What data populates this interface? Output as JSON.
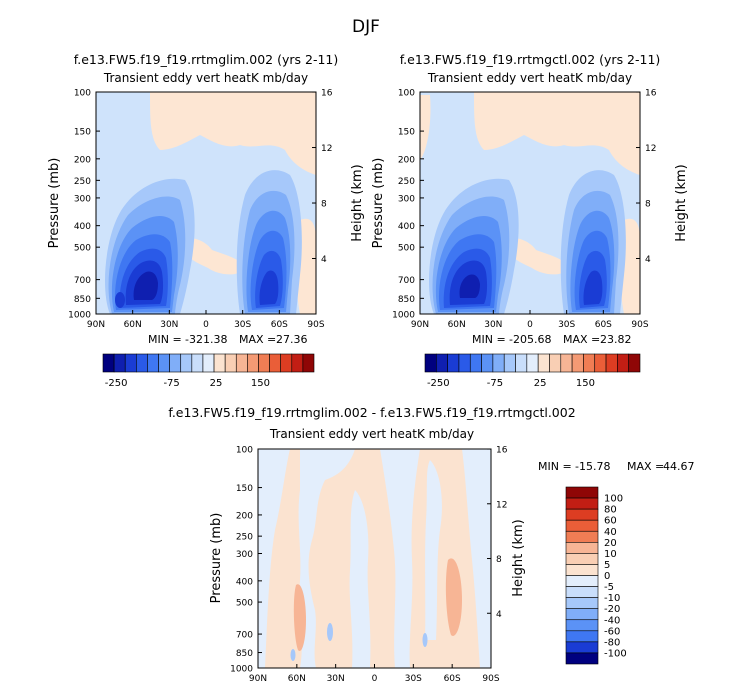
{
  "figure_title": "DJF",
  "colors": {
    "contour_fills": [
      "#00007f",
      "#0f1fb0",
      "#1a3cd4",
      "#2a5ae8",
      "#3f77f2",
      "#5b92f6",
      "#80aef8",
      "#a6c8fa",
      "#c9defb",
      "#e3eefc",
      "#fbe3d0",
      "#f9cfb4",
      "#f7b595",
      "#f49a74",
      "#f07d54",
      "#ea5e38",
      "#dd3d22",
      "#c21e14",
      "#8f0606"
    ],
    "background_field": "#cfe3fb",
    "positive_field": "#fde6d3"
  },
  "chart_data": [
    {
      "type": "heatmap",
      "panel": "top-left",
      "case_title": "f.e13.FW5.f19_f19.rrtmglim.002 (yrs 2-11)",
      "title": "Transient eddy vert heatK mb/day",
      "ylabel": "Pressure (mb)",
      "y2label": "Height (km)",
      "x_ticks": [
        "90N",
        "60N",
        "30N",
        "0",
        "30S",
        "60S",
        "90S"
      ],
      "x_values": [
        90,
        60,
        30,
        0,
        -30,
        -60,
        -90
      ],
      "y_ticks": [
        "100",
        "150",
        "200",
        "250",
        "300",
        "400",
        "500",
        "700",
        "850",
        "1000"
      ],
      "y_values": [
        100,
        150,
        200,
        250,
        300,
        400,
        500,
        700,
        850,
        1000
      ],
      "y2_ticks": [
        "16",
        "12",
        "8",
        "4"
      ],
      "y2_values": [
        16,
        12,
        8,
        4
      ],
      "stats": {
        "min_label": "MIN =",
        "min": "-321.38",
        "max_label": "MAX =",
        "max": "27.36"
      },
      "features": [
        {
          "lat": 50,
          "p": 650,
          "value": -300
        },
        {
          "lat": -50,
          "p": 700,
          "value": -200
        },
        {
          "lat": 10,
          "p": 600,
          "value": 20
        },
        {
          "lat": -5,
          "p": 200,
          "value": 10
        }
      ],
      "colorbar": {
        "orientation": "horizontal",
        "labels": [
          "-250",
          "-75",
          "25",
          "150"
        ],
        "levels": [
          -300,
          -250,
          -200,
          -150,
          -125,
          -100,
          -75,
          -50,
          -25,
          0,
          25,
          50,
          75,
          100,
          125,
          150,
          200,
          250
        ]
      }
    },
    {
      "type": "heatmap",
      "panel": "top-right",
      "case_title": "f.e13.FW5.f19_f19.rrtmgctl.002 (yrs 2-11)",
      "title": "Transient eddy vert heatK mb/day",
      "ylabel": "Pressure (mb)",
      "y2label": "Height (km)",
      "x_ticks": [
        "90N",
        "60N",
        "30N",
        "0",
        "30S",
        "60S",
        "90S"
      ],
      "x_values": [
        90,
        60,
        30,
        0,
        -30,
        -60,
        -90
      ],
      "y_ticks": [
        "100",
        "150",
        "200",
        "250",
        "300",
        "400",
        "500",
        "700",
        "850",
        "1000"
      ],
      "y_values": [
        100,
        150,
        200,
        250,
        300,
        400,
        500,
        700,
        850,
        1000
      ],
      "y2_ticks": [
        "16",
        "12",
        "8",
        "4"
      ],
      "y2_values": [
        16,
        12,
        8,
        4
      ],
      "stats": {
        "min_label": "MIN =",
        "min": "-205.68",
        "max_label": "MAX =",
        "max": "23.82"
      },
      "features": [
        {
          "lat": 50,
          "p": 650,
          "value": -200
        },
        {
          "lat": -50,
          "p": 700,
          "value": -180
        },
        {
          "lat": 10,
          "p": 600,
          "value": 20
        },
        {
          "lat": -5,
          "p": 200,
          "value": 10
        }
      ],
      "colorbar": {
        "orientation": "horizontal",
        "labels": [
          "-250",
          "-75",
          "25",
          "150"
        ],
        "levels": [
          -300,
          -250,
          -200,
          -150,
          -125,
          -100,
          -75,
          -50,
          -25,
          0,
          25,
          50,
          75,
          100,
          125,
          150,
          200,
          250
        ]
      }
    },
    {
      "type": "heatmap",
      "panel": "bottom-difference",
      "case_title": "f.e13.FW5.f19_f19.rrtmglim.002 - f.e13.FW5.f19_f19.rrtmgctl.002",
      "title": "Transient eddy vert heatK mb/day",
      "ylabel": "Pressure (mb)",
      "y2label": "Height (km)",
      "x_ticks": [
        "90N",
        "60N",
        "30N",
        "0",
        "30S",
        "60S",
        "90S"
      ],
      "x_values": [
        90,
        60,
        30,
        0,
        -30,
        -60,
        -90
      ],
      "y_ticks": [
        "100",
        "150",
        "200",
        "250",
        "300",
        "400",
        "500",
        "700",
        "850",
        "1000"
      ],
      "y_values": [
        100,
        150,
        200,
        250,
        300,
        400,
        500,
        700,
        850,
        1000
      ],
      "y2_ticks": [
        "16",
        "12",
        "8",
        "4"
      ],
      "y2_values": [
        16,
        12,
        8,
        4
      ],
      "stats": {
        "min_label": "MIN =",
        "min": "-15.78",
        "max_label": "MAX =",
        "max": "44.67"
      },
      "colorbar": {
        "orientation": "vertical",
        "labels": [
          "100",
          "80",
          "60",
          "40",
          "20",
          "10",
          "5",
          "0",
          "-5",
          "-10",
          "-20",
          "-40",
          "-60",
          "-80",
          "-100"
        ]
      }
    }
  ]
}
